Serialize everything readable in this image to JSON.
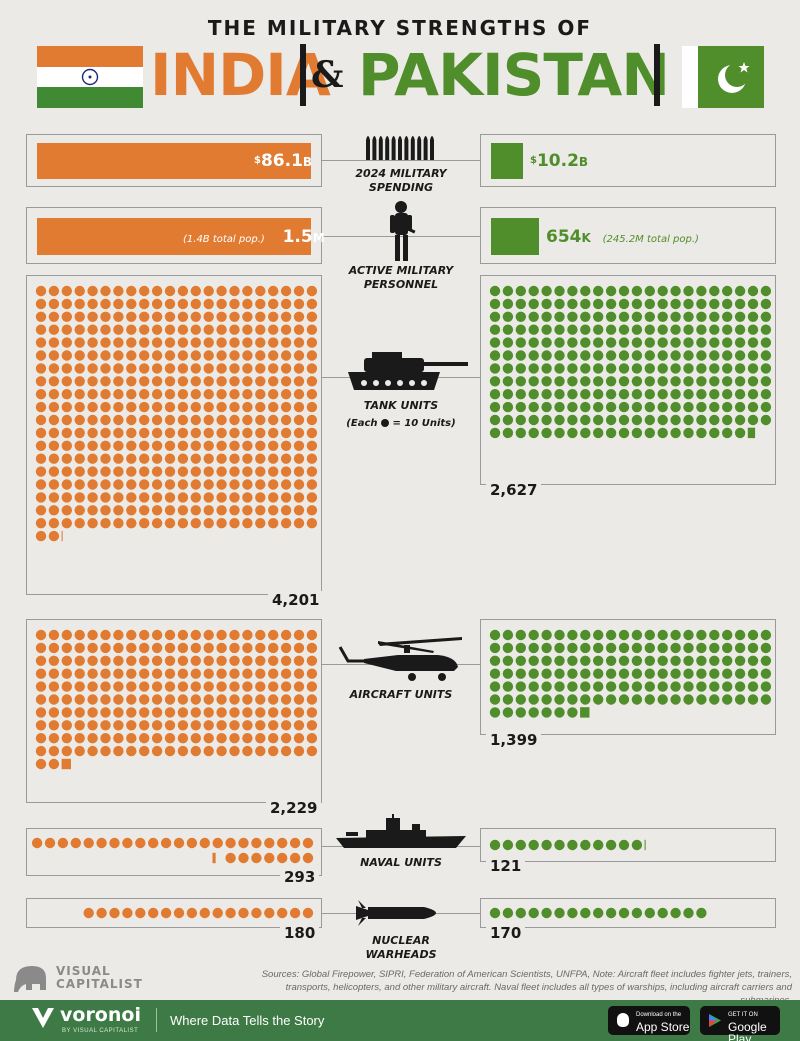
{
  "header": {
    "title_top": "THE MILITARY STRENGTHS OF",
    "india": "INDIA",
    "amp": "&",
    "pakistan": "PAKISTAN"
  },
  "colors": {
    "india": "#e07b31",
    "pakistan": "#4f8e2b",
    "background": "#eceae6"
  },
  "icons": [
    "bullets-icon",
    "soldier-icon",
    "tank-icon",
    "helicopter-icon",
    "warship-icon",
    "warhead-icon"
  ],
  "chart_data": [
    {
      "type": "bar",
      "title": "2024 MILITARY SPENDING",
      "categories": [
        "India",
        "Pakistan"
      ],
      "values": [
        86.1,
        10.2
      ],
      "labels": {
        "india_cur": "$",
        "india_val": "86.1",
        "india_unit": "B",
        "pk_cur": "$",
        "pk_val": "10.2",
        "pk_unit": "B"
      }
    },
    {
      "type": "bar",
      "title_line1": "ACTIVE MILITARY",
      "title_line2": "PERSONNEL",
      "categories": [
        "India",
        "Pakistan"
      ],
      "values": [
        1500000,
        654000
      ],
      "labels": {
        "india_val": "1.5",
        "india_unit": "M",
        "india_pop": "(1.4B total pop.)",
        "pk_val": "654",
        "pk_unit": "K",
        "pk_pop": "(245.2M total pop.)"
      }
    },
    {
      "type": "pictogram",
      "title": "TANK UNITS",
      "note_pre": "(Each",
      "note_post": "= 10 Units)",
      "categories": [
        "India",
        "Pakistan"
      ],
      "values": [
        4201,
        2627
      ],
      "labels": {
        "india": "4,201",
        "pakistan": "2,627"
      }
    },
    {
      "type": "pictogram",
      "title": "AIRCRAFT UNITS",
      "categories": [
        "India",
        "Pakistan"
      ],
      "values": [
        2229,
        1399
      ],
      "labels": {
        "india": "2,229",
        "pakistan": "1,399"
      }
    },
    {
      "type": "pictogram",
      "title": "NAVAL UNITS",
      "categories": [
        "India",
        "Pakistan"
      ],
      "values": [
        293,
        121
      ],
      "labels": {
        "india": "293",
        "pakistan": "121"
      }
    },
    {
      "type": "pictogram",
      "title": "NUCLEAR WARHEADS",
      "categories": [
        "India",
        "Pakistan"
      ],
      "values": [
        180,
        170
      ],
      "labels": {
        "india": "180",
        "pakistan": "170"
      }
    }
  ],
  "footer": {
    "sources": "Sources: Global Firepower, SIPRI, Federation of American Scientists, UNFPA, Note: Aircraft fleet includes fighter jets, trainers, transports, helicopters, and other military aircraft. Naval fleet includes all types of warships, including aircraft carriers and submarines.",
    "vc_line1": "VISUAL",
    "vc_line2": "CAPITALIST",
    "brand": "voronoi",
    "brand_sub": "BY VISUAL CAPITALIST",
    "tagline": "Where Data Tells the Story",
    "appstore_small": "Download on the",
    "appstore": "App Store",
    "googleplay_small": "GET IT ON",
    "googleplay": "Google Play"
  }
}
